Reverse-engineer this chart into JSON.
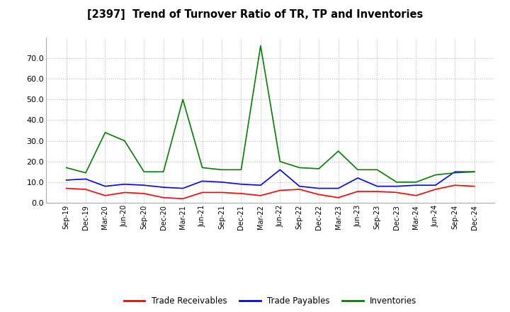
{
  "title": "[2397]  Trend of Turnover Ratio of TR, TP and Inventories",
  "x_labels": [
    "Sep-19",
    "Dec-19",
    "Mar-20",
    "Jun-20",
    "Sep-20",
    "Dec-20",
    "Mar-21",
    "Jun-21",
    "Sep-21",
    "Dec-21",
    "Mar-22",
    "Jun-22",
    "Sep-22",
    "Dec-22",
    "Mar-23",
    "Jun-23",
    "Sep-23",
    "Dec-23",
    "Mar-24",
    "Jun-24",
    "Sep-24",
    "Dec-24"
  ],
  "trade_receivables": [
    7.0,
    6.5,
    3.5,
    5.0,
    4.5,
    2.5,
    2.0,
    5.0,
    5.0,
    4.5,
    3.5,
    6.0,
    6.5,
    4.0,
    2.5,
    5.5,
    5.5,
    5.0,
    3.5,
    6.5,
    8.5,
    8.0
  ],
  "trade_payables": [
    11.0,
    11.5,
    8.0,
    9.0,
    8.5,
    7.5,
    7.0,
    10.5,
    10.0,
    9.0,
    8.5,
    16.0,
    8.0,
    7.0,
    7.0,
    12.0,
    8.0,
    8.0,
    8.5,
    8.5,
    15.0,
    15.0
  ],
  "inventories": [
    17.0,
    14.5,
    34.0,
    30.0,
    15.0,
    15.0,
    50.0,
    17.0,
    16.0,
    16.0,
    76.0,
    20.0,
    17.0,
    16.5,
    25.0,
    16.0,
    16.0,
    10.0,
    10.0,
    13.5,
    14.5,
    15.0
  ],
  "ylim": [
    0,
    80
  ],
  "yticks": [
    0.0,
    10.0,
    20.0,
    30.0,
    40.0,
    50.0,
    60.0,
    70.0
  ],
  "color_tr": "#ff0000",
  "color_tp": "#0000ff",
  "color_inv": "#008000",
  "bg_color": "#ffffff",
  "grid_color": "#aaaaaa",
  "legend_labels": [
    "Trade Receivables",
    "Trade Payables",
    "Inventories"
  ]
}
